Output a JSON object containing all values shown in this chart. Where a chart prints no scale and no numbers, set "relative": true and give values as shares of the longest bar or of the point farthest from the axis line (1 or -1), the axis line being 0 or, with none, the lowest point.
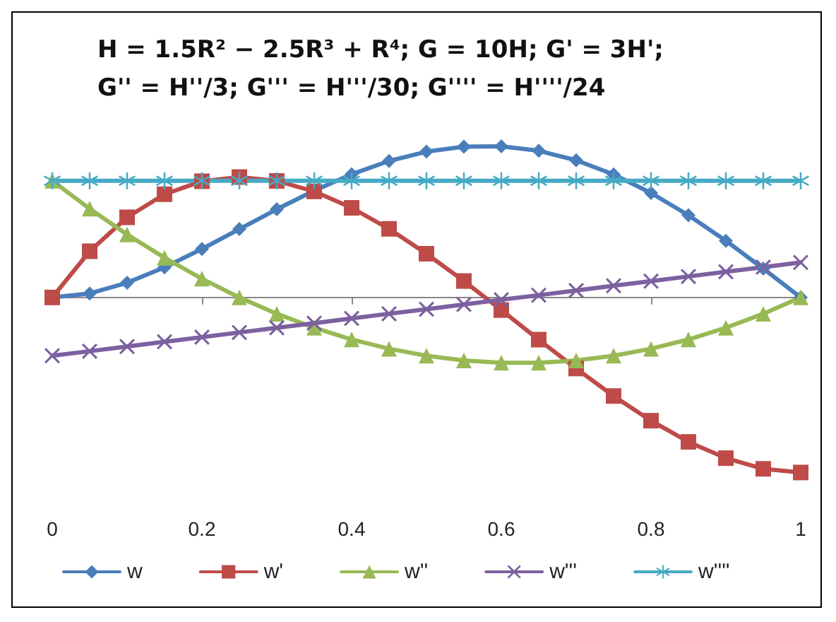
{
  "chart_data": {
    "type": "line",
    "title": "H = 1.5R² − 2.5R³ + R⁴; G = 10H; G' = 3H';\nG'' = H''/3; G''' = H'''/30; G'''' = H''''/24",
    "relative": true,
    "x": [
      0,
      0.05,
      0.1,
      0.15,
      0.2,
      0.25,
      0.3,
      0.35,
      0.4,
      0.45,
      0.5,
      0.55,
      0.6,
      0.65,
      0.7,
      0.75,
      0.8,
      0.85,
      0.9,
      0.95,
      1
    ],
    "xlim": [
      0,
      1
    ],
    "xticks": [
      0,
      0.2,
      0.4,
      0.6,
      0.8,
      1
    ],
    "series": [
      {
        "name": "w",
        "color": "#4a7ebb",
        "marker": "diamond",
        "values": [
          0,
          0.023,
          0.084,
          0.172,
          0.277,
          0.391,
          0.504,
          0.61,
          0.704,
          0.78,
          0.833,
          0.862,
          0.864,
          0.838,
          0.784,
          0.703,
          0.597,
          0.47,
          0.324,
          0.165,
          0
        ]
      },
      {
        "name": "w'",
        "color": "#be4b48",
        "marker": "square",
        "values": [
          0,
          0.264,
          0.458,
          0.59,
          0.664,
          0.688,
          0.666,
          0.606,
          0.512,
          0.392,
          0.25,
          0.094,
          -0.072,
          -0.241,
          -0.406,
          -0.563,
          -0.704,
          -0.825,
          -0.918,
          -0.979,
          -1
        ]
      },
      {
        "name": "w''",
        "color": "#98b954",
        "marker": "triangle",
        "values": [
          0.667,
          0.507,
          0.36,
          0.227,
          0.107,
          0,
          -0.093,
          -0.173,
          -0.24,
          -0.293,
          -0.333,
          -0.36,
          -0.373,
          -0.373,
          -0.36,
          -0.333,
          -0.293,
          -0.24,
          -0.173,
          -0.093,
          0
        ]
      },
      {
        "name": "w'''",
        "color": "#7d60a0",
        "marker": "cross",
        "values": [
          -0.333,
          -0.307,
          -0.28,
          -0.253,
          -0.227,
          -0.2,
          -0.173,
          -0.147,
          -0.12,
          -0.093,
          -0.067,
          -0.04,
          -0.013,
          0.013,
          0.04,
          0.067,
          0.093,
          0.12,
          0.147,
          0.173,
          0.2
        ]
      },
      {
        "name": "w''''",
        "color": "#46aac5",
        "marker": "star",
        "values": [
          0.667,
          0.667,
          0.667,
          0.667,
          0.667,
          0.667,
          0.667,
          0.667,
          0.667,
          0.667,
          0.667,
          0.667,
          0.667,
          0.667,
          0.667,
          0.667,
          0.667,
          0.667,
          0.667,
          0.667,
          0.667
        ]
      }
    ],
    "legend": "bottom left",
    "grid": false,
    "line_style": "solid"
  }
}
